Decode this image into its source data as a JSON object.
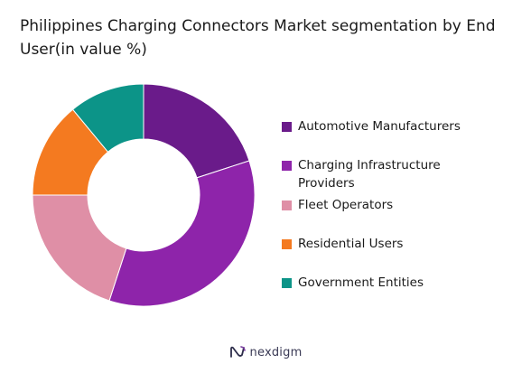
{
  "chart_data": {
    "type": "pie",
    "title": "Philippines Charging Connectors Market segmentation by End User(in value %)",
    "donut": true,
    "categories": [
      "Automotive Manufacturers",
      "Charging Infrastructure Providers",
      "Fleet Operators",
      "Residential Users",
      "Government Entities"
    ],
    "values": [
      20,
      35,
      20,
      14,
      11
    ],
    "colors": [
      "#6a1b8a",
      "#8e24aa",
      "#df8fa6",
      "#f47a20",
      "#0c9488"
    ],
    "legend_position": "right"
  },
  "legend": {
    "items": [
      {
        "label": "Automotive Manufacturers",
        "color": "#6a1b8a"
      },
      {
        "label": "Charging Infrastructure Providers",
        "color": "#8e24aa"
      },
      {
        "label": "Fleet Operators",
        "color": "#df8fa6"
      },
      {
        "label": "Residential Users",
        "color": "#f47a20"
      },
      {
        "label": "Government Entities",
        "color": "#0c9488"
      }
    ]
  },
  "brand": {
    "name": "nexdigm",
    "icon": "nexdigm-logo-icon"
  }
}
